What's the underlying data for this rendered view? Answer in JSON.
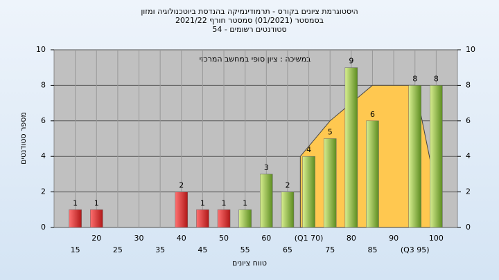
{
  "chart_data": {
    "type": "bar",
    "title": "היסטוגרמת ציונים בקורס - תרמודינמיקה בהנדסת ביוטכנולוגיה ומזון",
    "subtitle": "בסמסטר  (01/2021)  סמסטר חורף 2021/22",
    "subtitle2": "סטודנטים רשומים - 54",
    "annotation": "במשיכה : ציון סופי במחשב המרכזי",
    "ylabel": "מספר סטודנטים",
    "xlabel": "טווח ציונים",
    "categories": [
      "15",
      "20",
      "25",
      "30",
      "35",
      "40",
      "45",
      "50",
      "55",
      "60",
      "65",
      "(Q1 70)",
      "75",
      "80",
      "85",
      "90",
      "(Q3 95)",
      "100"
    ],
    "values": [
      1,
      1,
      null,
      null,
      null,
      2,
      1,
      1,
      1,
      3,
      2,
      4,
      5,
      9,
      6,
      null,
      8,
      8
    ],
    "colors": [
      "#e03030",
      "#e03030",
      "#e03030",
      "#e03030",
      "#e03030",
      "#e03030",
      "#e03030",
      "#e03030",
      "#8cc040",
      "#8cc040",
      "#8cc040",
      "#8cc040",
      "#8cc040",
      "#8cc040",
      "#8cc040",
      "#8cc040",
      "#8cc040",
      "#8cc040"
    ],
    "area": {
      "x": [
        68,
        75,
        80,
        85,
        95,
        99.5
      ],
      "values": [
        4,
        6,
        7,
        8,
        8,
        2.7
      ],
      "color": "#ffc850"
    },
    "xlim": [
      10,
      105
    ],
    "ylim": [
      0,
      10
    ],
    "yticks": [
      0,
      2,
      4,
      6,
      8,
      10
    ],
    "grid": true
  }
}
